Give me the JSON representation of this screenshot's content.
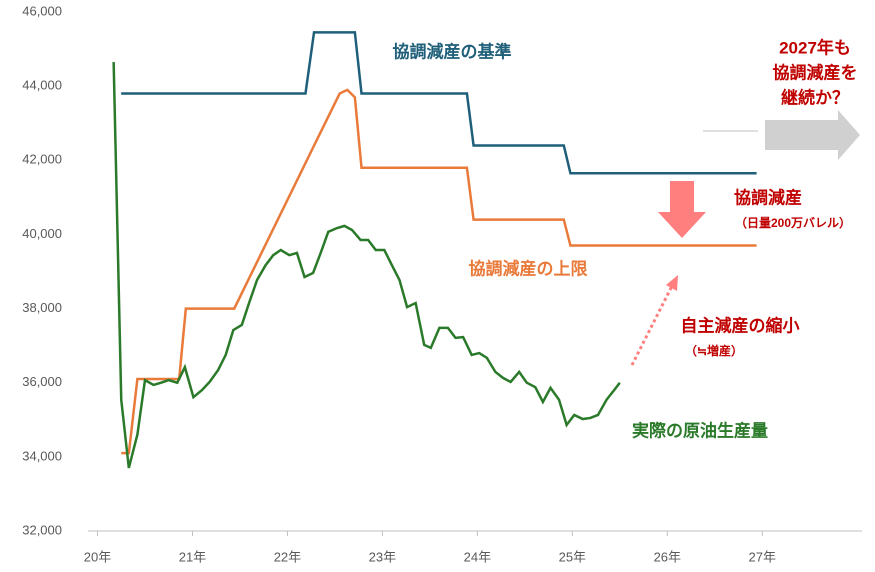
{
  "chart_data": {
    "type": "line",
    "xlim": [
      19.9,
      28.05
    ],
    "xticks": [
      {
        "value": 20,
        "label": "20年"
      },
      {
        "value": 21,
        "label": "21年"
      },
      {
        "value": 22,
        "label": "22年"
      },
      {
        "value": 23,
        "label": "23年"
      },
      {
        "value": 24,
        "label": "24年"
      },
      {
        "value": 25,
        "label": "25年"
      },
      {
        "value": 26,
        "label": "26年"
      },
      {
        "value": 27,
        "label": "27年"
      }
    ],
    "ylim": [
      32000,
      46000
    ],
    "yticks": [
      {
        "value": 32000,
        "label": "32,000"
      },
      {
        "value": 34000,
        "label": "34,000"
      },
      {
        "value": 36000,
        "label": "36,000"
      },
      {
        "value": 38000,
        "label": "38,000"
      },
      {
        "value": 40000,
        "label": "40,000"
      },
      {
        "value": 42000,
        "label": "42,000"
      },
      {
        "value": 44000,
        "label": "44,000"
      },
      {
        "value": 46000,
        "label": "46,000"
      }
    ],
    "series": [
      {
        "name": "協調減産の基準",
        "color": "#1f5f7a",
        "x": [
          20.25,
          22.19,
          22.28,
          22.71,
          22.78,
          23.89,
          23.96,
          24.91,
          24.98,
          26.94
        ],
        "values": [
          43800,
          43800,
          45450,
          45450,
          43800,
          43800,
          42400,
          42400,
          41650,
          41650
        ]
      },
      {
        "name": "協調減産の上限",
        "color": "#e97a3a",
        "x": [
          20.25,
          20.33,
          20.42,
          20.86,
          20.93,
          21.44,
          22.3,
          22.55,
          22.63,
          22.71,
          22.78,
          23.89,
          23.96,
          24.91,
          24.98,
          26.94
        ],
        "values": [
          34100,
          34100,
          36100,
          36100,
          38000,
          38000,
          42500,
          43800,
          43900,
          43700,
          41800,
          41800,
          40400,
          40400,
          39700,
          39700
        ]
      },
      {
        "name": "実際の原油生産量",
        "color": "#2a7a2a",
        "x": [
          20.17,
          20.25,
          20.33,
          20.42,
          20.5,
          20.59,
          20.67,
          20.75,
          20.84,
          20.92,
          21.01,
          21.1,
          21.18,
          21.27,
          21.35,
          21.43,
          21.52,
          21.6,
          21.68,
          21.77,
          21.85,
          21.93,
          22.02,
          22.1,
          22.18,
          22.27,
          22.35,
          22.43,
          22.52,
          22.6,
          22.68,
          22.77,
          22.85,
          22.93,
          23.02,
          23.1,
          23.18,
          23.26,
          23.35,
          23.44,
          23.51,
          23.6,
          23.69,
          23.77,
          23.85,
          23.94,
          24.02,
          24.1,
          24.19,
          24.27,
          24.35,
          24.44,
          24.52,
          24.61,
          24.69,
          24.77,
          24.86,
          24.94,
          25.02,
          25.11,
          25.19,
          25.27,
          25.36,
          25.44,
          25.5
        ],
        "values": [
          44650,
          35540,
          33700,
          34600,
          36070,
          35940,
          36000,
          36070,
          36000,
          36420,
          35610,
          35800,
          36020,
          36340,
          36750,
          37420,
          37560,
          38180,
          38770,
          39170,
          39440,
          39580,
          39440,
          39500,
          38850,
          38960,
          39500,
          40070,
          40170,
          40230,
          40120,
          39850,
          39850,
          39580,
          39580,
          39170,
          38770,
          38040,
          38150,
          37020,
          36940,
          37480,
          37480,
          37210,
          37230,
          36750,
          36800,
          36670,
          36290,
          36130,
          36020,
          36290,
          36000,
          35880,
          35480,
          35860,
          35540,
          34860,
          35130,
          35020,
          35050,
          35130,
          35540,
          35800,
          36000
        ]
      }
    ],
    "annotations": [
      [
        "2027年も",
        "協調減産を",
        "継続か？"
      ],
      [
        "協調減産",
        "（日量200万バレル）"
      ],
      [
        "自主減産の縮小",
        "（≒増産）"
      ]
    ]
  }
}
